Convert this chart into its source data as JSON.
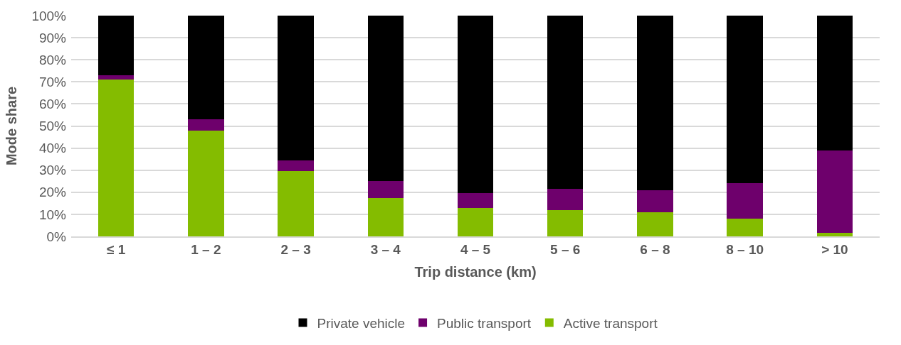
{
  "chart_data": {
    "type": "bar",
    "stacked": true,
    "xlabel": "Trip distance (km)",
    "ylabel": "Mode share",
    "categories": [
      "≤ 1",
      "1 – 2",
      "2 – 3",
      "3 – 4",
      "4 – 5",
      "5 – 6",
      "6 – 8",
      "8 – 10",
      "> 10"
    ],
    "series": [
      {
        "name": "Active transport",
        "color": "#84bc00",
        "values": [
          71,
          48,
          29.5,
          17.5,
          13,
          12,
          11,
          8,
          1.5
        ]
      },
      {
        "name": "Public transport",
        "color": "#6e006c",
        "values": [
          2,
          5,
          5,
          7.5,
          6.5,
          9.5,
          10,
          16,
          37.5
        ]
      },
      {
        "name": "Private vehicle",
        "color": "#000000",
        "values": [
          27,
          47,
          65.5,
          75,
          80.5,
          78.5,
          79,
          76,
          61
        ]
      }
    ],
    "ylim": [
      0,
      100
    ],
    "yticks": [
      {
        "value": 0,
        "label": "0%"
      },
      {
        "value": 10,
        "label": "10%"
      },
      {
        "value": 20,
        "label": "20%"
      },
      {
        "value": 30,
        "label": "30%"
      },
      {
        "value": 40,
        "label": "40%"
      },
      {
        "value": 50,
        "label": "50%"
      },
      {
        "value": 60,
        "label": "60%"
      },
      {
        "value": 70,
        "label": "70%"
      },
      {
        "value": 80,
        "label": "80%"
      },
      {
        "value": 90,
        "label": "90%"
      },
      {
        "value": 100,
        "label": "100%"
      }
    ],
    "grid": "y",
    "legend": "bottom"
  }
}
